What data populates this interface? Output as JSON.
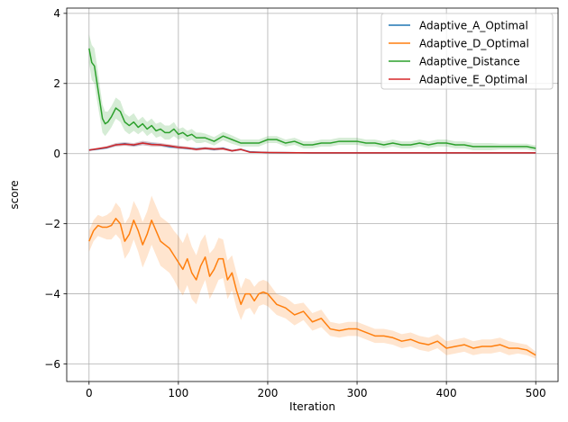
{
  "chart_data": {
    "type": "line",
    "title": "",
    "xlabel": "Iteration",
    "ylabel": "score",
    "xlim": [
      -25,
      525
    ],
    "ylim": [
      -6.5,
      4.15
    ],
    "x_ticks": [
      0,
      100,
      200,
      300,
      400,
      500
    ],
    "x_tick_labels": [
      "0",
      "100",
      "200",
      "300",
      "400",
      "500"
    ],
    "y_ticks": [
      -6,
      -4,
      -2,
      0,
      2,
      4
    ],
    "y_tick_labels": [
      "−6",
      "−4",
      "−2",
      "0",
      "2",
      "4"
    ],
    "grid": true,
    "legend_position": "top-right",
    "series": [
      {
        "name": "Adaptive_A_Optimal",
        "color": "#1f77b4",
        "x": [
          0,
          10,
          20,
          30,
          40,
          50,
          60,
          70,
          80,
          90,
          100,
          110,
          120,
          130,
          140,
          150,
          160,
          170,
          180,
          200,
          250,
          300,
          350,
          400,
          450,
          500
        ],
        "y": [
          0.1,
          0.13,
          0.17,
          0.25,
          0.28,
          0.24,
          0.3,
          0.27,
          0.25,
          0.2,
          0.18,
          0.15,
          0.13,
          0.15,
          0.12,
          0.15,
          0.08,
          0.12,
          0.05,
          0.03,
          0.02,
          0.02,
          0.02,
          0.02,
          0.02,
          0.02
        ],
        "band": [
          0.03,
          0.03,
          0.04,
          0.05,
          0.05,
          0.05,
          0.06,
          0.06,
          0.05,
          0.05,
          0.05,
          0.04,
          0.04,
          0.04,
          0.04,
          0.04,
          0.03,
          0.03,
          0.02,
          0.01,
          0.01,
          0.01,
          0.01,
          0.01,
          0.01,
          0.01
        ]
      },
      {
        "name": "Adaptive_D_Optimal",
        "color": "#ff7f0e",
        "x": [
          0,
          5,
          10,
          15,
          20,
          25,
          30,
          35,
          40,
          45,
          50,
          55,
          60,
          65,
          70,
          75,
          80,
          85,
          90,
          95,
          100,
          105,
          110,
          115,
          120,
          125,
          130,
          135,
          140,
          145,
          150,
          155,
          160,
          165,
          170,
          175,
          180,
          185,
          190,
          195,
          200,
          210,
          220,
          230,
          240,
          250,
          260,
          270,
          280,
          290,
          300,
          310,
          320,
          330,
          340,
          350,
          360,
          370,
          380,
          390,
          400,
          410,
          420,
          430,
          440,
          450,
          460,
          470,
          480,
          490,
          500
        ],
        "y": [
          -2.5,
          -2.2,
          -2.05,
          -2.1,
          -2.1,
          -2.05,
          -1.85,
          -2.0,
          -2.5,
          -2.3,
          -1.9,
          -2.2,
          -2.6,
          -2.3,
          -1.9,
          -2.2,
          -2.5,
          -2.6,
          -2.7,
          -2.9,
          -3.1,
          -3.3,
          -3.0,
          -3.4,
          -3.6,
          -3.2,
          -2.95,
          -3.5,
          -3.3,
          -3.0,
          -3.0,
          -3.6,
          -3.4,
          -3.9,
          -4.3,
          -4.0,
          -4.0,
          -4.2,
          -4.0,
          -3.95,
          -4.0,
          -4.3,
          -4.4,
          -4.6,
          -4.5,
          -4.8,
          -4.7,
          -5.0,
          -5.05,
          -5.0,
          -5.0,
          -5.1,
          -5.2,
          -5.2,
          -5.25,
          -5.35,
          -5.3,
          -5.4,
          -5.45,
          -5.35,
          -5.55,
          -5.5,
          -5.45,
          -5.55,
          -5.5,
          -5.5,
          -5.45,
          -5.55,
          -5.55,
          -5.6,
          -5.75
        ],
        "band": [
          0.3,
          0.3,
          0.3,
          0.3,
          0.35,
          0.4,
          0.45,
          0.45,
          0.5,
          0.5,
          0.55,
          0.6,
          0.65,
          0.65,
          0.7,
          0.7,
          0.7,
          0.7,
          0.7,
          0.7,
          0.75,
          0.75,
          0.75,
          0.75,
          0.7,
          0.7,
          0.65,
          0.65,
          0.6,
          0.6,
          0.55,
          0.55,
          0.5,
          0.5,
          0.45,
          0.45,
          0.4,
          0.4,
          0.35,
          0.35,
          0.35,
          0.3,
          0.3,
          0.3,
          0.25,
          0.25,
          0.25,
          0.2,
          0.2,
          0.2,
          0.2,
          0.2,
          0.2,
          0.2,
          0.2,
          0.2,
          0.2,
          0.2,
          0.2,
          0.2,
          0.2,
          0.2,
          0.2,
          0.2,
          0.2,
          0.2,
          0.2,
          0.2,
          0.15,
          0.15,
          0.1
        ]
      },
      {
        "name": "Adaptive_Distance",
        "color": "#2ca02c",
        "x": [
          0,
          3,
          6,
          9,
          12,
          15,
          18,
          21,
          25,
          30,
          35,
          40,
          45,
          50,
          55,
          60,
          65,
          70,
          75,
          80,
          85,
          90,
          95,
          100,
          105,
          110,
          115,
          120,
          125,
          130,
          140,
          150,
          160,
          170,
          180,
          190,
          200,
          210,
          220,
          230,
          240,
          250,
          260,
          270,
          280,
          290,
          300,
          310,
          320,
          330,
          340,
          350,
          360,
          370,
          380,
          390,
          400,
          410,
          420,
          430,
          440,
          450,
          460,
          470,
          480,
          490,
          500
        ],
        "y": [
          3.0,
          2.6,
          2.5,
          2.0,
          1.5,
          1.0,
          0.85,
          0.9,
          1.05,
          1.3,
          1.2,
          0.9,
          0.8,
          0.9,
          0.75,
          0.85,
          0.7,
          0.8,
          0.65,
          0.7,
          0.6,
          0.6,
          0.7,
          0.55,
          0.6,
          0.5,
          0.55,
          0.45,
          0.45,
          0.45,
          0.35,
          0.5,
          0.4,
          0.3,
          0.3,
          0.3,
          0.4,
          0.4,
          0.3,
          0.35,
          0.25,
          0.25,
          0.3,
          0.3,
          0.35,
          0.35,
          0.35,
          0.3,
          0.3,
          0.25,
          0.3,
          0.25,
          0.25,
          0.3,
          0.25,
          0.3,
          0.3,
          0.25,
          0.25,
          0.2,
          0.2,
          0.2,
          0.2,
          0.2,
          0.2,
          0.2,
          0.15
        ],
        "band": [
          0.4,
          0.5,
          0.5,
          0.5,
          0.45,
          0.4,
          0.35,
          0.3,
          0.3,
          0.3,
          0.3,
          0.25,
          0.25,
          0.25,
          0.2,
          0.2,
          0.2,
          0.2,
          0.2,
          0.2,
          0.2,
          0.2,
          0.2,
          0.15,
          0.15,
          0.15,
          0.15,
          0.15,
          0.15,
          0.12,
          0.12,
          0.12,
          0.12,
          0.1,
          0.1,
          0.1,
          0.1,
          0.1,
          0.1,
          0.1,
          0.1,
          0.1,
          0.1,
          0.1,
          0.1,
          0.1,
          0.1,
          0.1,
          0.1,
          0.1,
          0.1,
          0.1,
          0.1,
          0.1,
          0.1,
          0.1,
          0.1,
          0.1,
          0.1,
          0.1,
          0.1,
          0.1,
          0.08,
          0.08,
          0.08,
          0.08,
          0.08
        ]
      },
      {
        "name": "Adaptive_E_Optimal",
        "color": "#d62728",
        "x": [
          0,
          10,
          20,
          30,
          40,
          50,
          60,
          70,
          80,
          90,
          100,
          110,
          120,
          130,
          140,
          150,
          160,
          170,
          180,
          200,
          250,
          300,
          350,
          400,
          450,
          500
        ],
        "y": [
          0.1,
          0.14,
          0.18,
          0.25,
          0.27,
          0.25,
          0.3,
          0.26,
          0.25,
          0.22,
          0.18,
          0.16,
          0.12,
          0.15,
          0.13,
          0.14,
          0.08,
          0.12,
          0.04,
          0.03,
          0.02,
          0.02,
          0.02,
          0.02,
          0.02,
          0.02
        ],
        "band": [
          0.03,
          0.03,
          0.04,
          0.05,
          0.05,
          0.05,
          0.06,
          0.06,
          0.05,
          0.05,
          0.05,
          0.04,
          0.04,
          0.04,
          0.04,
          0.04,
          0.03,
          0.03,
          0.02,
          0.01,
          0.01,
          0.01,
          0.01,
          0.01,
          0.01,
          0.01
        ]
      }
    ]
  }
}
